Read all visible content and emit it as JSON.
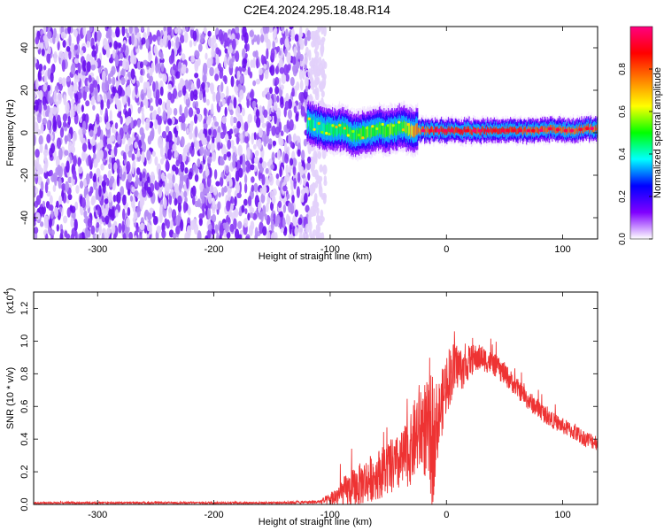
{
  "title": "C2E4.2024.295.18.48.R14",
  "chart_data": [
    {
      "type": "heatmap",
      "xlabel": "Height of straight line (km)",
      "ylabel": "Frequency (Hz)",
      "xlim": [
        -355,
        130
      ],
      "ylim": [
        -50,
        50
      ],
      "xticks": [
        -300,
        -200,
        -100,
        0,
        100
      ],
      "yticks": [
        -40,
        -20,
        0,
        20,
        40
      ],
      "colorbar": {
        "label": "Normalized spectral amplitude",
        "range": [
          0.0,
          1.0
        ],
        "ticks": [
          "0.0",
          "0.2",
          "0.4",
          "0.6",
          "0.8"
        ],
        "colors": [
          "#ffffff",
          "#8000ff",
          "#0000ff",
          "#00ffff",
          "#00ff00",
          "#ffff00",
          "#ff8000",
          "#ff0000",
          "#ff0080"
        ]
      },
      "noise_region_x": [
        -355,
        -110
      ],
      "ridge": {
        "x": [
          -120,
          -110,
          -100,
          -90,
          -80,
          -70,
          -60,
          -50,
          -40,
          -35,
          -30,
          -20,
          -10,
          0,
          10,
          20,
          30,
          40,
          50,
          60,
          70,
          80,
          90,
          100,
          110,
          120,
          130
        ],
        "freq": [
          5,
          3,
          1,
          2,
          -1,
          0,
          2,
          1,
          3,
          2,
          1,
          1,
          1,
          1,
          1,
          1,
          1,
          1,
          1,
          1,
          1,
          1,
          2,
          1,
          1,
          2,
          2
        ],
        "amplitude": [
          0.5,
          0.45,
          0.5,
          0.55,
          0.55,
          0.6,
          0.55,
          0.6,
          0.55,
          0.6,
          0.75,
          0.85,
          0.9,
          0.9,
          0.9,
          0.9,
          0.9,
          0.9,
          0.9,
          0.9,
          0.85,
          0.85,
          0.85,
          0.85,
          0.85,
          0.85,
          0.85
        ]
      }
    },
    {
      "type": "line",
      "xlabel": "Height of straight line (km)",
      "ylabel": "SNR (10 * v/v)",
      "yexponent_label": "(x10",
      "yexponent": "4",
      "xlim": [
        -355,
        130
      ],
      "ylim": [
        0,
        1.3
      ],
      "xticks": [
        -300,
        -200,
        -100,
        0,
        100
      ],
      "yticks": [
        "0.0",
        "0.2",
        "0.4",
        "0.6",
        "0.8",
        "1.0",
        "1.2"
      ],
      "series": [
        {
          "color": "#ee3333",
          "x": [
            -355,
            -300,
            -250,
            -200,
            -150,
            -110,
            -100,
            -90,
            -80,
            -70,
            -60,
            -50,
            -40,
            -30,
            -25,
            -20,
            -15,
            -12,
            -10,
            -5,
            0,
            5,
            10,
            15,
            20,
            30,
            40,
            50,
            60,
            70,
            80,
            90,
            100,
            110,
            120,
            130
          ],
          "y": [
            0.01,
            0.01,
            0.01,
            0.01,
            0.01,
            0.015,
            0.03,
            0.07,
            0.1,
            0.14,
            0.18,
            0.22,
            0.25,
            0.34,
            0.45,
            0.48,
            0.42,
            0.38,
            0.45,
            0.58,
            0.75,
            0.82,
            0.85,
            0.82,
            0.88,
            0.9,
            0.86,
            0.8,
            0.72,
            0.64,
            0.58,
            0.52,
            0.48,
            0.44,
            0.4,
            0.38
          ],
          "noise": [
            0.006,
            0.006,
            0.006,
            0.006,
            0.006,
            0.01,
            0.04,
            0.09,
            0.12,
            0.14,
            0.15,
            0.17,
            0.18,
            0.22,
            0.28,
            0.3,
            0.32,
            0.45,
            0.3,
            0.2,
            0.2,
            0.18,
            0.14,
            0.12,
            0.1,
            0.08,
            0.07,
            0.07,
            0.06,
            0.06,
            0.06,
            0.05,
            0.05,
            0.05,
            0.05,
            0.05
          ]
        }
      ]
    }
  ]
}
